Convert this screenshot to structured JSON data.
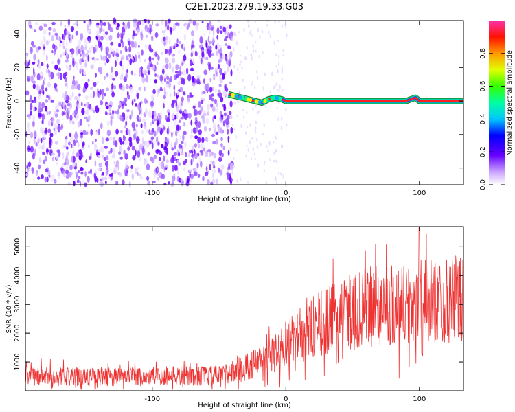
{
  "title": "C2E1.2023.279.19.33.G03",
  "chart_data": [
    {
      "type": "heatmap",
      "xlabel": "Height of straight line (km)",
      "ylabel": "Frequency (Hz)",
      "xlim": [
        -195,
        133
      ],
      "ylim": [
        -50,
        48
      ],
      "xticks": [
        -100,
        0,
        100
      ],
      "yticks": [
        -40,
        -20,
        0,
        20,
        40
      ],
      "colorbar": {
        "label": "Normalized spectral amplitude",
        "range": [
          0,
          1
        ],
        "ticks": [
          0.0,
          0.2,
          0.4,
          0.6,
          0.8
        ],
        "tick_labels": [
          "0.0",
          "0.2",
          "0.4",
          "0.6",
          "0.8"
        ]
      },
      "noise_region_x": [
        -195,
        -40
      ],
      "carrier_trace": {
        "x": [
          -43,
          -38,
          -33,
          -28,
          -23,
          -18,
          -13,
          -8,
          -3,
          0,
          20,
          50,
          90,
          97,
          100,
          133
        ],
        "y": [
          4,
          3,
          2,
          1,
          0,
          -1,
          1,
          2,
          1,
          0,
          0,
          0,
          0,
          2,
          0,
          0
        ]
      }
    },
    {
      "type": "line",
      "xlabel": "Height of straight line (km)",
      "ylabel": "SNR (10 * v/v)",
      "xlim": [
        -195,
        133
      ],
      "ylim": [
        0,
        5700
      ],
      "xticks": [
        -100,
        0,
        100
      ],
      "yticks": [
        1000,
        2000,
        3000,
        4000,
        5000
      ],
      "color": "#ee3333",
      "trend": {
        "x": [
          -195,
          -150,
          -100,
          -50,
          -30,
          -10,
          0,
          20,
          40,
          60,
          80,
          95,
          100,
          105,
          133
        ],
        "y": [
          500,
          480,
          500,
          520,
          800,
          1200,
          1600,
          2200,
          2600,
          2900,
          3000,
          3050,
          3100,
          3100,
          3200
        ]
      },
      "spikes": [
        {
          "x": 100,
          "y": 5700
        },
        {
          "x": 102,
          "y": 1300
        }
      ]
    }
  ]
}
